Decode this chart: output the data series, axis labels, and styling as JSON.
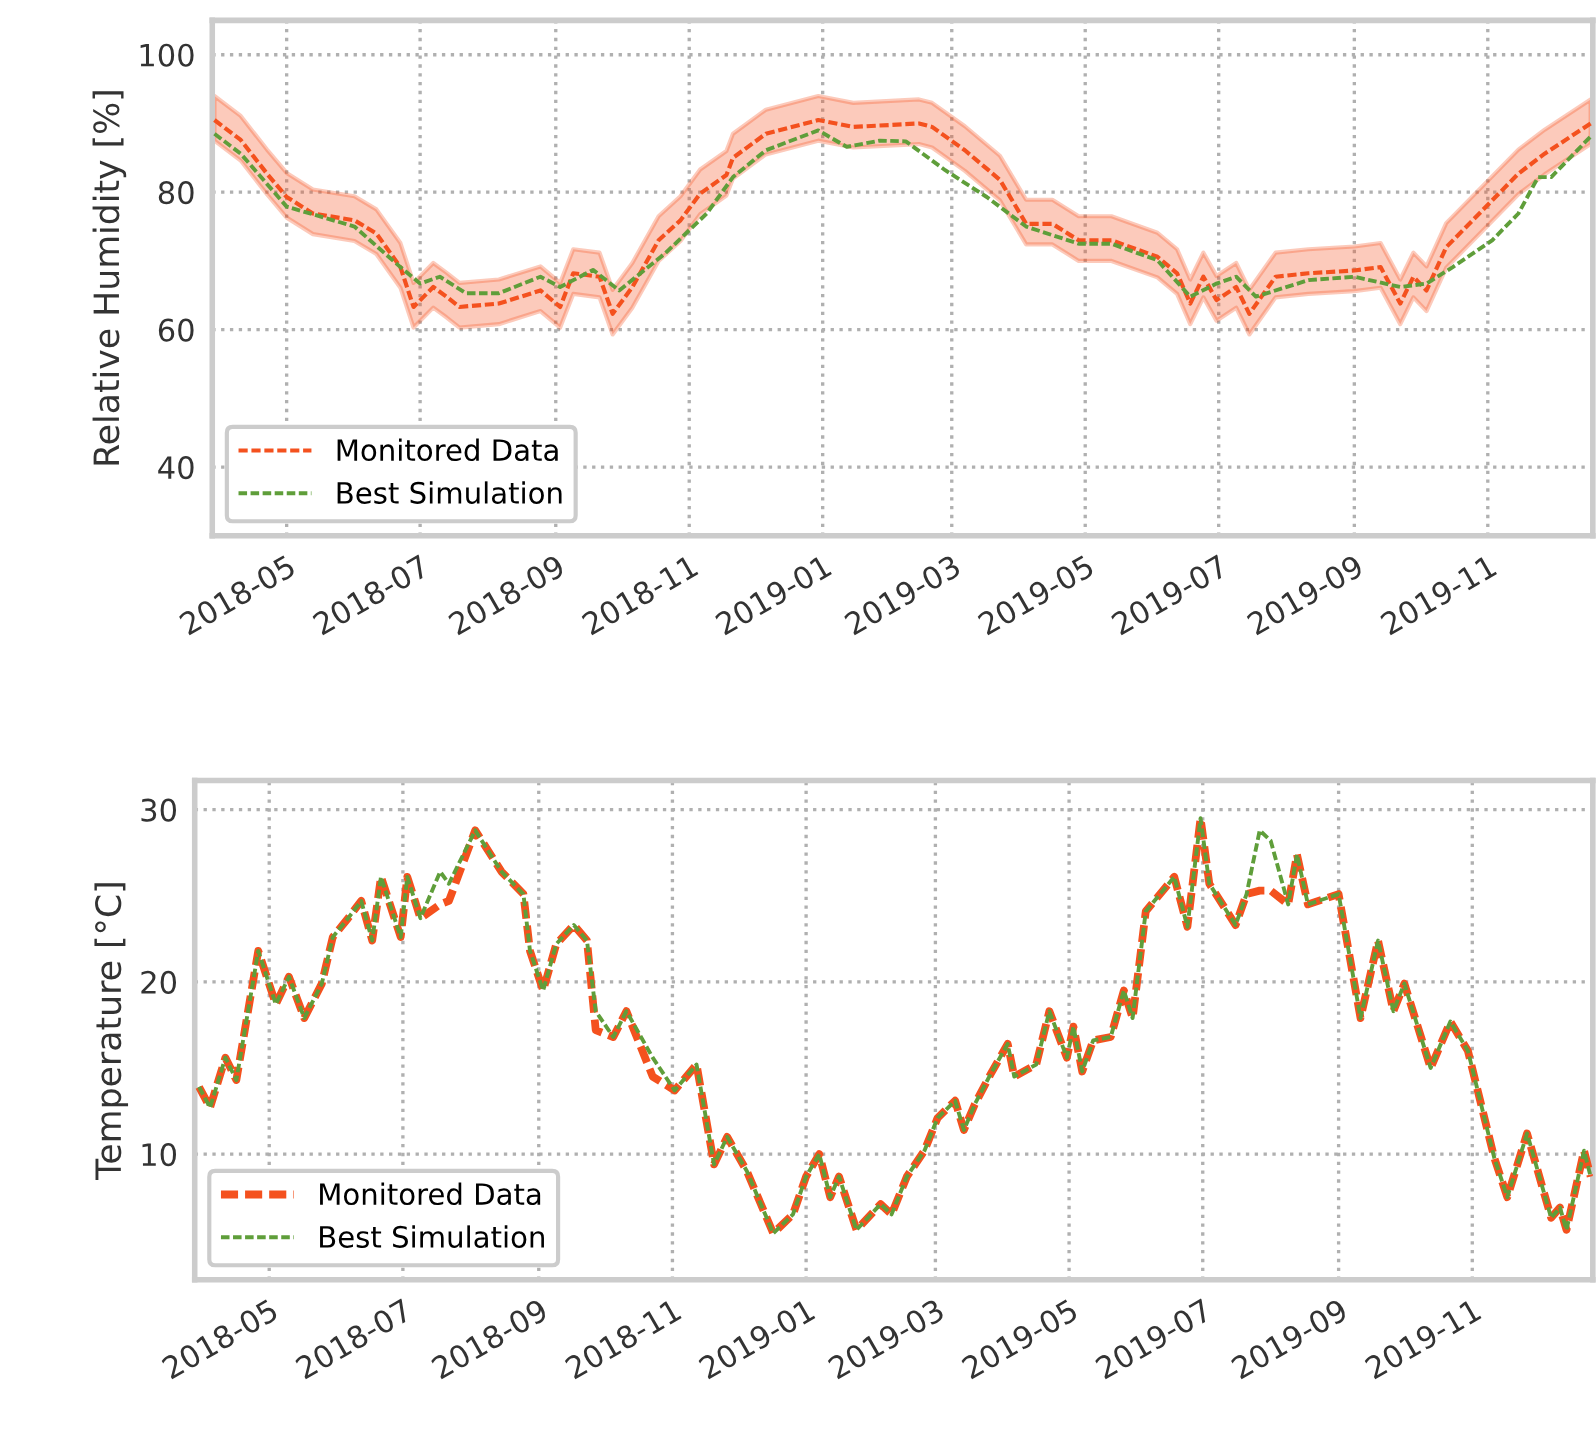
{
  "chart_data": [
    {
      "type": "line",
      "ylabel": "Relative Humidity [%]",
      "xlim": [
        "2018-03-28",
        "2019-12-19"
      ],
      "ylim": [
        30,
        105
      ],
      "yticks": [
        40,
        60,
        80,
        100
      ],
      "xticks": [
        "2018-05",
        "2018-07",
        "2018-09",
        "2018-11",
        "2019-01",
        "2019-03",
        "2019-05",
        "2019-07",
        "2019-09",
        "2019-11"
      ],
      "grid": true,
      "legend": "bottom left",
      "line_style": "dashed",
      "series": [
        {
          "name": "Monitored Data",
          "color": "#f4511e",
          "x": [
            "2018-03-29",
            "2018-04-10",
            "2018-04-22",
            "2018-05-01",
            "2018-05-13",
            "2018-06-01",
            "2018-06-11",
            "2018-06-22",
            "2018-06-28",
            "2018-07-07",
            "2018-07-13",
            "2018-07-19",
            "2018-08-06",
            "2018-08-25",
            "2018-09-03",
            "2018-09-09",
            "2018-09-21",
            "2018-09-27",
            "2018-10-06",
            "2018-10-18",
            "2018-10-28",
            "2018-11-06",
            "2018-11-18",
            "2018-11-21",
            "2018-12-06",
            "2018-12-30",
            "2019-01-15",
            "2019-02-14",
            "2019-02-20",
            "2019-03-07",
            "2019-03-23",
            "2019-04-04",
            "2019-04-16",
            "2019-04-28",
            "2019-05-13",
            "2019-06-03",
            "2019-06-12",
            "2019-06-18",
            "2019-06-24",
            "2019-06-30",
            "2019-07-09",
            "2019-07-15",
            "2019-07-27",
            "2019-08-11",
            "2019-09-01",
            "2019-09-13",
            "2019-09-22",
            "2019-09-28",
            "2019-10-04",
            "2019-10-13",
            "2019-11-03",
            "2019-11-15",
            "2019-11-27",
            "2019-12-18"
          ],
          "values": [
            90.5,
            87.6,
            82.7,
            79.3,
            76.9,
            75.9,
            74,
            69.1,
            63.3,
            66.2,
            64.8,
            63.3,
            63.8,
            65.7,
            63.3,
            68.2,
            67.7,
            62.3,
            66.2,
            73,
            75.9,
            79.8,
            82.5,
            85,
            88.5,
            90.5,
            89.5,
            90,
            89.5,
            86.1,
            81.8,
            75.4,
            75.4,
            73,
            73,
            70.6,
            68.2,
            63.8,
            67.7,
            64.3,
            66.2,
            62.3,
            67.7,
            68.2,
            68.6,
            69.1,
            63.8,
            67.7,
            65.7,
            72,
            78.8,
            82.7,
            85.6,
            90
          ],
          "upper": [
            94,
            91.1,
            86.2,
            82.8,
            80.4,
            79.4,
            77.5,
            72.6,
            66.8,
            69.7,
            68.3,
            66.8,
            67.3,
            69.2,
            66.8,
            71.7,
            71.2,
            65.8,
            69.7,
            76.5,
            79.4,
            83.3,
            86,
            88.5,
            92,
            94,
            93,
            93.5,
            93,
            89.6,
            85.3,
            78.9,
            78.9,
            76.5,
            76.5,
            74.1,
            71.7,
            67.3,
            71.2,
            67.8,
            69.7,
            65.8,
            71.2,
            71.7,
            72.1,
            72.6,
            67.3,
            71.2,
            69.2,
            75.5,
            82.3,
            86.2,
            89.1,
            93.5
          ],
          "lower": [
            87.5,
            84.6,
            79.7,
            76.3,
            73.9,
            72.9,
            71,
            66.1,
            60.3,
            63.2,
            61.8,
            60.3,
            60.8,
            62.7,
            60.3,
            65.2,
            64.7,
            59.3,
            63.2,
            70,
            72.9,
            76.8,
            79.5,
            82,
            85.5,
            87.5,
            86.5,
            87,
            86.5,
            83.1,
            78.8,
            72.4,
            72.4,
            70,
            70,
            67.6,
            65.2,
            60.8,
            64.7,
            61.3,
            63.2,
            59.3,
            64.7,
            65.2,
            65.6,
            66.1,
            60.8,
            64.7,
            62.7,
            69,
            75.8,
            79.7,
            82.6,
            87
          ]
        },
        {
          "name": "Best Simulation",
          "color": "#5f9e3a",
          "x": [
            "2018-03-29",
            "2018-04-10",
            "2018-05-01",
            "2018-06-01",
            "2018-06-22",
            "2018-07-01",
            "2018-07-10",
            "2018-07-22",
            "2018-08-06",
            "2018-08-25",
            "2018-09-03",
            "2018-09-18",
            "2018-09-30",
            "2018-10-21",
            "2018-11-09",
            "2018-11-21",
            "2018-12-06",
            "2018-12-30",
            "2019-01-12",
            "2019-01-27",
            "2019-02-08",
            "2019-02-26",
            "2019-03-17",
            "2019-04-04",
            "2019-04-28",
            "2019-05-13",
            "2019-06-03",
            "2019-06-18",
            "2019-06-30",
            "2019-07-09",
            "2019-07-18",
            "2019-08-11",
            "2019-09-01",
            "2019-09-22",
            "2019-10-04",
            "2019-10-16",
            "2019-11-03",
            "2019-11-15",
            "2019-11-24",
            "2019-11-30",
            "2019-12-18"
          ],
          "values": [
            88.5,
            85.6,
            77.9,
            75,
            69.1,
            66.7,
            67.7,
            65.3,
            65.3,
            67.7,
            66.2,
            68.7,
            65.7,
            71.1,
            76.9,
            82.2,
            86.1,
            89,
            86.6,
            87.5,
            87.4,
            83.2,
            79.3,
            75,
            72.5,
            72.5,
            70.1,
            64.8,
            66.7,
            67.7,
            64.8,
            67.2,
            67.7,
            66.2,
            66.7,
            69.1,
            73,
            76.9,
            82.2,
            82.2,
            88.1
          ]
        }
      ]
    },
    {
      "type": "line",
      "ylabel": "Temperature [°C]",
      "xlim": [
        "2018-03-28",
        "2019-12-26"
      ],
      "ylim": [
        2.7,
        31.7
      ],
      "yticks": [
        10,
        20,
        30
      ],
      "xticks": [
        "2018-05",
        "2018-07",
        "2018-09",
        "2018-11",
        "2019-01",
        "2019-03",
        "2019-05",
        "2019-07",
        "2019-09",
        "2019-11"
      ],
      "grid": true,
      "legend": "bottom left",
      "line_style": "dashed",
      "x": [
        "2018-03-30",
        "2018-04-04",
        "2018-04-11",
        "2018-04-16",
        "2018-04-26",
        "2018-05-04",
        "2018-05-10",
        "2018-05-17",
        "2018-05-25",
        "2018-05-30",
        "2018-06-06",
        "2018-06-12",
        "2018-06-17",
        "2018-06-21",
        "2018-06-30",
        "2018-07-03",
        "2018-07-09",
        "2018-07-18",
        "2018-07-22",
        "2018-08-03",
        "2018-08-07",
        "2018-08-15",
        "2018-08-25",
        "2018-08-28",
        "2018-09-03",
        "2018-09-09",
        "2018-09-17",
        "2018-09-23",
        "2018-09-27",
        "2018-10-05",
        "2018-10-11",
        "2018-10-23",
        "2018-11-02",
        "2018-11-12",
        "2018-11-20",
        "2018-11-26",
        "2018-12-05",
        "2018-12-17",
        "2018-12-26",
        "2019-01-01",
        "2019-01-07",
        "2019-01-12",
        "2019-01-16",
        "2019-01-24",
        "2019-02-04",
        "2019-02-09",
        "2019-02-16",
        "2019-02-24",
        "2019-03-02",
        "2019-03-10",
        "2019-03-14",
        "2019-03-19",
        "2019-03-26",
        "2019-04-03",
        "2019-04-06",
        "2019-04-16",
        "2019-04-22",
        "2019-04-30",
        "2019-05-03",
        "2019-05-07",
        "2019-05-12",
        "2019-05-20",
        "2019-05-26",
        "2019-05-30",
        "2019-06-05",
        "2019-06-18",
        "2019-06-24",
        "2019-06-30",
        "2019-07-04",
        "2019-07-16",
        "2019-07-21",
        "2019-07-27",
        "2019-08-01",
        "2019-08-09",
        "2019-08-13",
        "2019-08-18",
        "2019-09-01",
        "2019-09-11",
        "2019-09-19",
        "2019-09-26",
        "2019-10-01",
        "2019-10-13",
        "2019-10-22",
        "2019-10-30",
        "2019-11-11",
        "2019-11-17",
        "2019-11-26",
        "2019-12-07",
        "2019-12-11",
        "2019-12-14",
        "2019-12-22",
        "2019-12-25"
      ],
      "series": [
        {
          "name": "Monitored Data",
          "color": "#f4511e",
          "values": [
            13.9,
            12.7,
            15.6,
            14.3,
            21.8,
            18.7,
            20.3,
            17.9,
            19.9,
            22.6,
            23.7,
            24.7,
            22.4,
            26.1,
            22.6,
            26.1,
            23.7,
            24.5,
            24.7,
            28.8,
            28,
            26.4,
            25.1,
            21.8,
            19.5,
            22.2,
            23.3,
            22.4,
            17.2,
            16.8,
            18.3,
            14.5,
            13.7,
            15.2,
            9.4,
            11,
            9,
            5.4,
            6.5,
            8.7,
            10,
            7.5,
            8.7,
            5.6,
            7.1,
            6.5,
            8.7,
            10.2,
            12.1,
            13.1,
            11.4,
            12.9,
            14.6,
            16.4,
            14.5,
            15.2,
            18.3,
            15.6,
            17.4,
            14.8,
            16.6,
            16.8,
            19.5,
            17.9,
            24.1,
            26.1,
            23.2,
            29.5,
            25.7,
            23.3,
            25.1,
            25.3,
            25.3,
            24.5,
            27.4,
            24.5,
            25.1,
            17.9,
            22.4,
            18.3,
            19.9,
            15,
            17.7,
            16,
            9.8,
            7.5,
            11.2,
            6.3,
            6.9,
            5.6,
            10.2,
            8.7
          ]
        },
        {
          "name": "Best Simulation",
          "color": "#5f9e3a",
          "values": [
            13.9,
            12.7,
            15.6,
            14.3,
            21.8,
            18.7,
            20.3,
            17.9,
            19.9,
            22.6,
            23.7,
            24.7,
            22.4,
            26.1,
            22.6,
            26.1,
            23.7,
            26.4,
            25.7,
            28.8,
            28,
            26.4,
            25.1,
            21.8,
            19.5,
            22.2,
            23.3,
            22.4,
            18.3,
            16.8,
            18.3,
            15.6,
            13.7,
            15.2,
            9.4,
            11,
            9,
            5.4,
            6.5,
            8.7,
            10,
            7.5,
            8.7,
            5.6,
            7.1,
            6.5,
            8.7,
            10.2,
            12.1,
            13.1,
            11.4,
            12.9,
            14.6,
            16.4,
            14.5,
            15.2,
            18.3,
            15.6,
            17.4,
            14.8,
            16.6,
            16.8,
            19.5,
            17.9,
            24.1,
            26.1,
            23.2,
            29.5,
            25.7,
            23.3,
            25.1,
            28.8,
            28.2,
            24.5,
            27.4,
            24.5,
            25.1,
            17.9,
            22.4,
            18.3,
            19.9,
            15,
            17.7,
            16,
            9.8,
            7.5,
            11.2,
            6.3,
            6.9,
            5.6,
            10.2,
            8.7
          ]
        }
      ]
    }
  ]
}
